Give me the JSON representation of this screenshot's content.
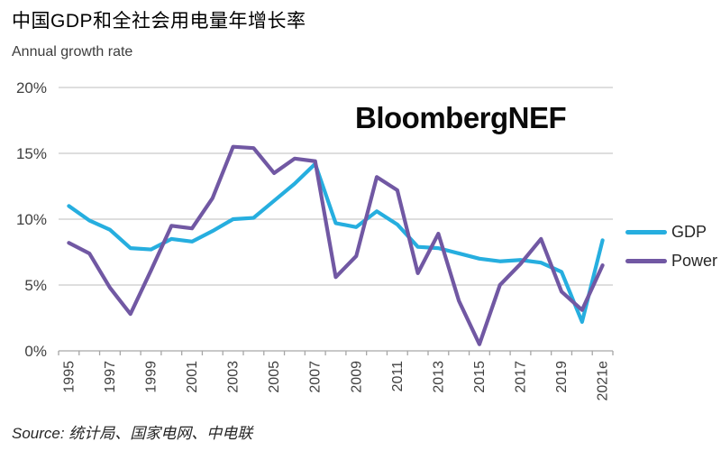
{
  "header": {
    "title": "中国GDP和全社会用电量年增长率",
    "subtitle": "Annual growth rate"
  },
  "watermark": "BloombergNEF",
  "legend": [
    {
      "label": "GDP",
      "color": "#26AEDF"
    },
    {
      "label": "Power",
      "color": "#7158A3"
    }
  ],
  "source": "Source: 统计局、国家电网、中电联",
  "chart_data": {
    "type": "line",
    "title": "中国GDP和全社会用电量年增长率",
    "ylabel": "Annual growth rate",
    "x": [
      "1995",
      "1996",
      "1997",
      "1998",
      "1999",
      "2000",
      "2001",
      "2002",
      "2003",
      "2004",
      "2005",
      "2006",
      "2007",
      "2008",
      "2009",
      "2010",
      "2011",
      "2012",
      "2013",
      "2014",
      "2015",
      "2016",
      "2017",
      "2018",
      "2019",
      "2020",
      "2021e"
    ],
    "series": [
      {
        "name": "GDP",
        "color": "#26AEDF",
        "values": [
          11.0,
          9.9,
          9.2,
          7.8,
          7.7,
          8.5,
          8.3,
          9.1,
          10.0,
          10.1,
          11.4,
          12.7,
          14.2,
          9.7,
          9.4,
          10.6,
          9.6,
          7.9,
          7.8,
          7.4,
          7.0,
          6.8,
          6.9,
          6.7,
          6.0,
          2.2,
          8.4
        ]
      },
      {
        "name": "Power",
        "color": "#7158A3",
        "values": [
          8.2,
          7.4,
          4.8,
          2.8,
          6.1,
          9.5,
          9.3,
          11.6,
          15.5,
          15.4,
          13.5,
          14.6,
          14.4,
          5.6,
          7.2,
          13.2,
          12.2,
          5.9,
          8.9,
          3.8,
          0.5,
          5.0,
          6.6,
          8.5,
          4.5,
          3.1,
          6.5
        ]
      }
    ],
    "ylim": [
      0,
      20
    ],
    "y_ticks": [
      {
        "value": 0,
        "label": "0%"
      },
      {
        "value": 5,
        "label": "5%"
      },
      {
        "value": 10,
        "label": "10%"
      },
      {
        "value": 15,
        "label": "15%"
      },
      {
        "value": 20,
        "label": "20%"
      }
    ],
    "x_label_every": 2,
    "grid": true,
    "legend_position": "right",
    "colors": {
      "grid": "#c9c9c9",
      "axis": "#a6a6a6",
      "tick_text": "#404040"
    }
  }
}
